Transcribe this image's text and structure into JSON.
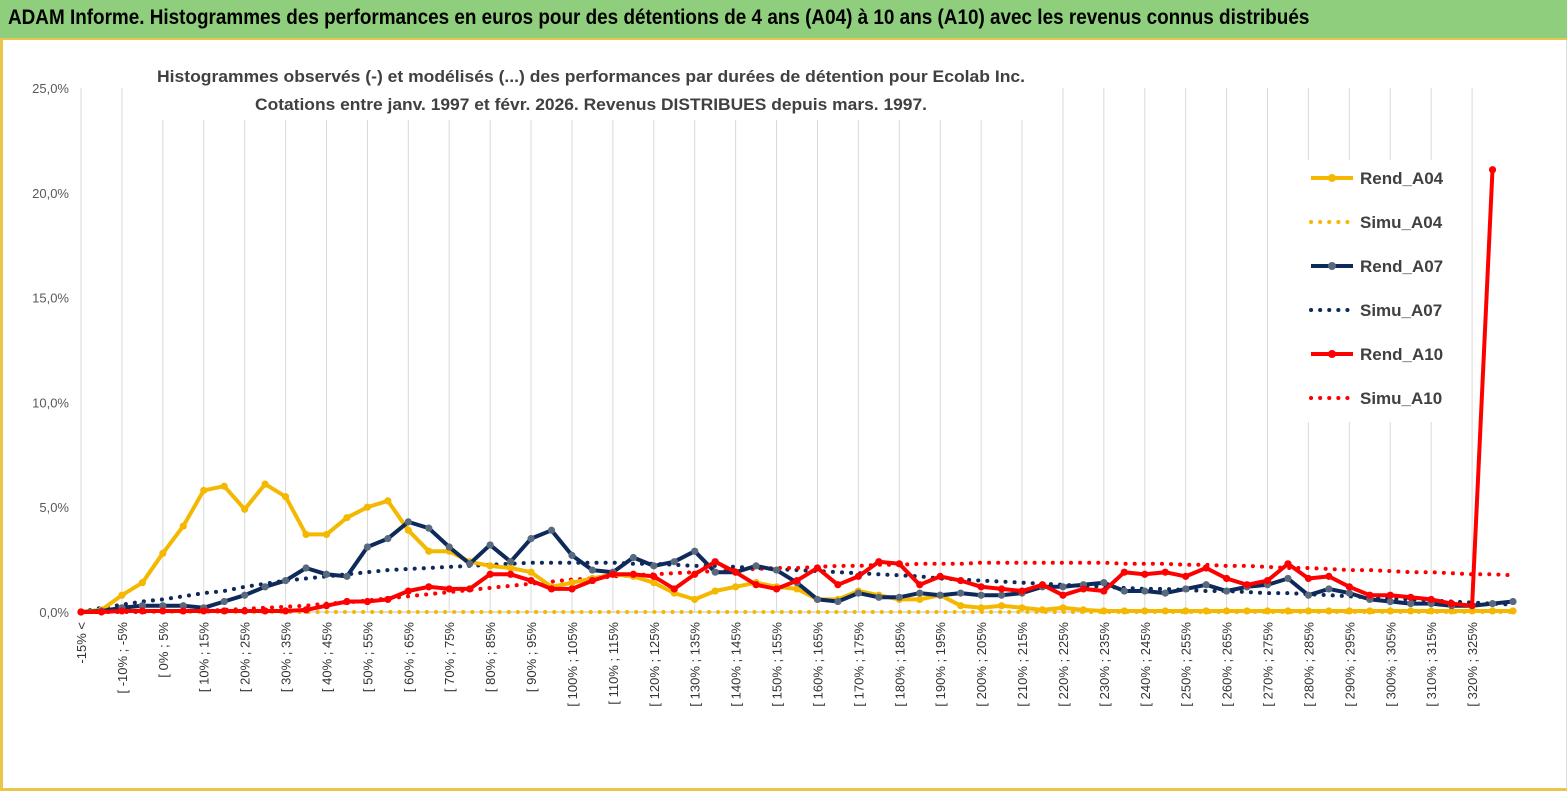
{
  "header": {
    "title": "ADAM Informe. Histogrammes des performances en euros pour des détentions de 4 ans (A04) à 10 ans (A10) avec les revenus connus distribués"
  },
  "chart_data": {
    "type": "line",
    "title_lines": [
      "Histogrammes observés (-) et modélisés (...) des performances par durées de détention pour Ecolab Inc.",
      "Cotations entre janv. 1997 et févr. 2026. Revenus DISTRIBUES depuis mars. 1997."
    ],
    "xlabel": "",
    "ylabel": "",
    "ylim": [
      0,
      25
    ],
    "y_ticks": [
      "0,0%",
      "5,0%",
      "10,0%",
      "15,0%",
      "20,0%",
      "25,0%"
    ],
    "grid": "vertical",
    "legend_position": "right",
    "x_tick_labels": [
      "-15% <",
      "[ -10% ; -5%",
      "[ 0% ; 5%",
      "[ 10% ; 15%",
      "[ 20% ; 25%",
      "[ 30% ; 35%",
      "[ 40% ; 45%",
      "[ 50% ; 55%",
      "[ 60% ; 65%",
      "[ 70% ; 75%",
      "[ 80% ; 85%",
      "[ 90% ; 95%",
      "[ 100% ; 105%",
      "[ 110% ; 115%",
      "[ 120% ; 125%",
      "[ 130% ; 135%",
      "[ 140% ; 145%",
      "[ 150% ; 155%",
      "[ 160% ; 165%",
      "[ 170% ; 175%",
      "[ 180% ; 185%",
      "[ 190% ; 195%",
      "[ 200% ; 205%",
      "[ 210% ; 215%",
      "[ 220% ; 225%",
      "[ 230% ; 235%",
      "[ 240% ; 245%",
      "[ 250% ; 255%",
      "[ 260% ; 265%",
      "[ 270% ; 275%",
      "[ 280% ; 285%",
      "[ 290% ; 295%",
      "[ 300% ; 305%",
      "[ 310% ; 315%",
      "[ 320% ; 325%"
    ],
    "series": [
      {
        "name": "Rend_A04",
        "color": "#f5b800",
        "style": "solid",
        "markers": true,
        "values": [
          0,
          0.1,
          0.8,
          1.4,
          2.8,
          4.1,
          5.8,
          6.0,
          4.9,
          6.1,
          5.5,
          3.7,
          3.7,
          4.5,
          5.0,
          5.3,
          3.9,
          2.9,
          2.9,
          2.4,
          2.2,
          2.1,
          1.9,
          1.2,
          1.4,
          1.6,
          1.8,
          1.7,
          1.4,
          0.9,
          0.6,
          1.0,
          1.2,
          1.4,
          1.2,
          1.1,
          0.6,
          0.6,
          1.0,
          0.8,
          0.6,
          0.6,
          0.8,
          0.3,
          0.2,
          0.3,
          0.2,
          0.1,
          0.2,
          0.1,
          0.05,
          0.05,
          0.05,
          0.05,
          0.05,
          0.05,
          0.05,
          0.05,
          0.05,
          0.05,
          0.05,
          0.05,
          0.05,
          0.05,
          0.05,
          0.05,
          0.05,
          0.05,
          0.05,
          0.05,
          0.05
        ]
      },
      {
        "name": "Simu_A04",
        "color": "#f5b800",
        "style": "dotted",
        "markers": false,
        "values": [
          0,
          0,
          0,
          0,
          0,
          0,
          0,
          0,
          0,
          0,
          0,
          0,
          0,
          0,
          0,
          0,
          0,
          0,
          0,
          0,
          0,
          0,
          0,
          0,
          0,
          0,
          0,
          0,
          0,
          0,
          0,
          0,
          0,
          0,
          0,
          0,
          0,
          0,
          0,
          0,
          0,
          0,
          0,
          0,
          0,
          0,
          0,
          0,
          0,
          0,
          0,
          0,
          0,
          0,
          0,
          0,
          0,
          0,
          0,
          0,
          0,
          0,
          0,
          0,
          0,
          0,
          0,
          0,
          0,
          0,
          0
        ]
      },
      {
        "name": "Rend_A07",
        "color": "#0e2a5a",
        "style": "solid",
        "markers": true,
        "values": [
          0,
          0.05,
          0.2,
          0.3,
          0.3,
          0.3,
          0.2,
          0.5,
          0.8,
          1.2,
          1.5,
          2.1,
          1.8,
          1.7,
          3.1,
          3.5,
          4.3,
          4.0,
          3.1,
          2.3,
          3.2,
          2.4,
          3.5,
          3.9,
          2.7,
          2.0,
          1.9,
          2.6,
          2.2,
          2.4,
          2.9,
          1.9,
          1.9,
          2.2,
          2.0,
          1.4,
          0.6,
          0.5,
          0.9,
          0.7,
          0.7,
          0.9,
          0.8,
          0.9,
          0.8,
          0.8,
          0.9,
          1.2,
          1.2,
          1.3,
          1.4,
          1.0,
          1.0,
          0.9,
          1.1,
          1.3,
          1.0,
          1.2,
          1.3,
          1.6,
          0.8,
          1.1,
          0.9,
          0.6,
          0.5,
          0.4,
          0.4,
          0.3,
          0.3,
          0.4,
          0.5
        ]
      },
      {
        "name": "Simu_A07",
        "color": "#0e2a5a",
        "style": "dotted",
        "markers": false,
        "values": [
          0,
          0.2,
          0.35,
          0.5,
          0.6,
          0.75,
          0.9,
          1.0,
          1.2,
          1.35,
          1.5,
          1.6,
          1.7,
          1.8,
          1.9,
          2.0,
          2.05,
          2.1,
          2.15,
          2.2,
          2.25,
          2.3,
          2.35,
          2.35,
          2.35,
          2.35,
          2.35,
          2.3,
          2.3,
          2.25,
          2.2,
          2.2,
          2.15,
          2.1,
          2.05,
          2.0,
          1.95,
          1.9,
          1.85,
          1.8,
          1.75,
          1.7,
          1.6,
          1.55,
          1.5,
          1.45,
          1.4,
          1.35,
          1.3,
          1.25,
          1.2,
          1.15,
          1.1,
          1.1,
          1.05,
          1.0,
          1.0,
          0.95,
          0.9,
          0.9,
          0.85,
          0.8,
          0.75,
          0.7,
          0.65,
          0.6,
          0.55,
          0.5,
          0.45,
          0.4,
          0.35
        ]
      },
      {
        "name": "Rend_A10",
        "color": "#ff0000",
        "style": "solid",
        "markers": true,
        "values": [
          0,
          0,
          0.05,
          0.05,
          0.05,
          0.05,
          0.05,
          0.05,
          0.05,
          0.05,
          0.05,
          0.1,
          0.3,
          0.5,
          0.5,
          0.6,
          1.0,
          1.2,
          1.1,
          1.1,
          1.8,
          1.8,
          1.5,
          1.1,
          1.1,
          1.5,
          1.8,
          1.8,
          1.7,
          1.1,
          1.8,
          2.4,
          1.9,
          1.3,
          1.1,
          1.5,
          2.1,
          1.3,
          1.7,
          2.4,
          2.3,
          1.3,
          1.7,
          1.5,
          1.2,
          1.1,
          1.0,
          1.3,
          0.8,
          1.1,
          1.0,
          1.9,
          1.8,
          1.9,
          1.7,
          2.1,
          1.6,
          1.3,
          1.5,
          2.3,
          1.6,
          1.7,
          1.2,
          0.8,
          0.8,
          0.7,
          0.6,
          0.4,
          0.3,
          21.1,
          null
        ]
      },
      {
        "name": "Simu_A10",
        "color": "#ff0000",
        "style": "dotted",
        "markers": false,
        "values": [
          0,
          0,
          0,
          0,
          0.05,
          0.05,
          0.05,
          0.1,
          0.15,
          0.2,
          0.25,
          0.3,
          0.4,
          0.45,
          0.55,
          0.65,
          0.75,
          0.85,
          0.95,
          1.05,
          1.15,
          1.25,
          1.35,
          1.45,
          1.55,
          1.6,
          1.7,
          1.75,
          1.8,
          1.85,
          1.9,
          1.95,
          2.0,
          2.05,
          2.1,
          2.1,
          2.15,
          2.2,
          2.2,
          2.25,
          2.25,
          2.3,
          2.3,
          2.3,
          2.35,
          2.35,
          2.35,
          2.35,
          2.35,
          2.35,
          2.35,
          2.3,
          2.3,
          2.3,
          2.25,
          2.25,
          2.2,
          2.2,
          2.15,
          2.1,
          2.1,
          2.05,
          2.0,
          2.0,
          1.95,
          1.9,
          1.9,
          1.85,
          1.8,
          1.8,
          1.75
        ]
      }
    ]
  }
}
